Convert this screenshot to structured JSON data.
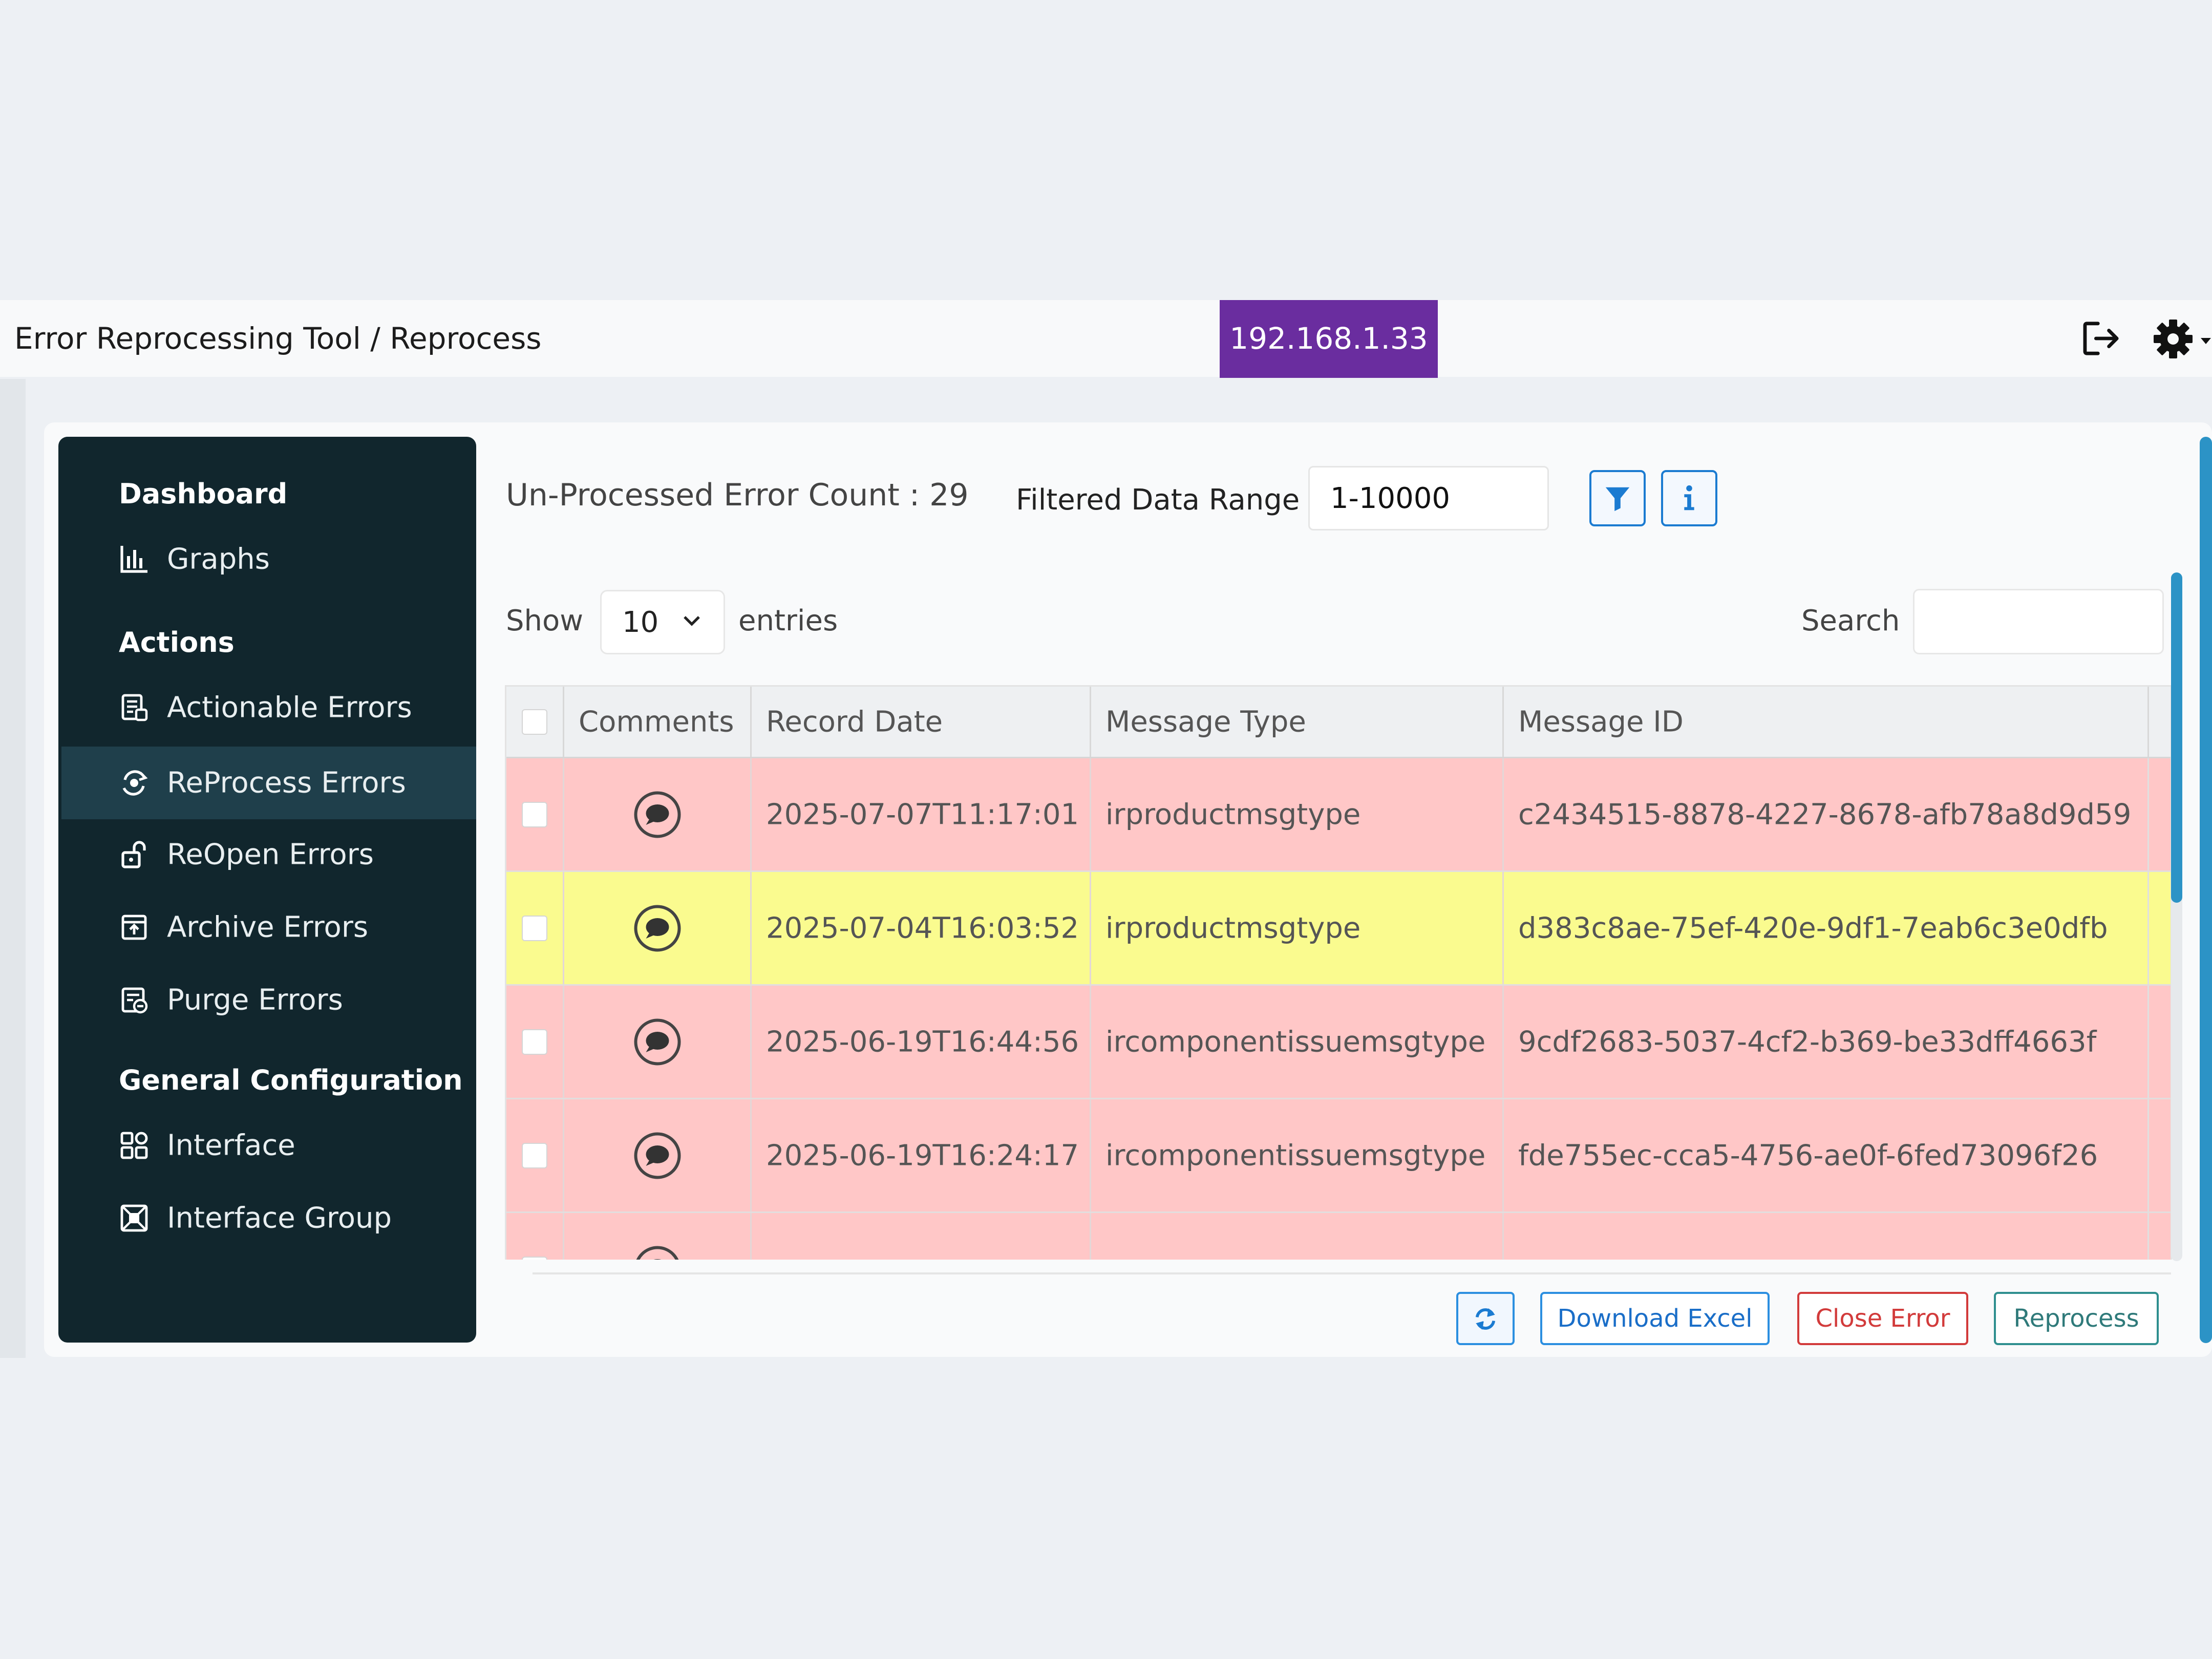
{
  "header": {
    "breadcrumb": "Error Reprocessing Tool / Reprocess",
    "ip_badge": "192.168.1.33",
    "logout_icon": "logout-icon",
    "settings_icon": "gear-icon",
    "accent_color": "#6a2d9f"
  },
  "sidebar": {
    "sections": [
      {
        "title": "Dashboard",
        "items": [
          {
            "label": "Graphs",
            "icon": "bar-chart-icon"
          }
        ]
      },
      {
        "title": "Actions",
        "items": [
          {
            "label": "Actionable Errors",
            "icon": "document-icon"
          },
          {
            "label": "ReProcess Errors",
            "icon": "reprocess-icon",
            "active": true
          },
          {
            "label": "ReOpen Errors",
            "icon": "unlock-icon"
          },
          {
            "label": "Archive Errors",
            "icon": "archive-icon"
          },
          {
            "label": "Purge Errors",
            "icon": "purge-icon"
          }
        ]
      },
      {
        "title": "General Configuration",
        "items": [
          {
            "label": "Interface",
            "icon": "interface-icon"
          },
          {
            "label": "Interface Group",
            "icon": "interface-group-icon"
          }
        ]
      }
    ],
    "background": "#11262d",
    "active_background": "#1f3f4b"
  },
  "main": {
    "count_label": "Un-Processed Error Count : 29",
    "filtered_label": "Filtered Data Range",
    "range_value": "1-10000",
    "show_label": "Show",
    "page_size": "10",
    "entries_label": "entries",
    "search_label": "Search",
    "search_value": ""
  },
  "table": {
    "columns": [
      "Comments",
      "Record Date",
      "Message Type",
      "Message ID"
    ],
    "rows": [
      {
        "record_date": "2025-07-07T11:17:01",
        "message_type": "irproductmsgtype",
        "message_id": "c2434515-8878-4227-8678-afb78a8d9d59",
        "color": "#ffc7c7"
      },
      {
        "record_date": "2025-07-04T16:03:52",
        "message_type": "irproductmsgtype",
        "message_id": "d383c8ae-75ef-420e-9df1-7eab6c3e0dfb",
        "color": "#fafb8f"
      },
      {
        "record_date": "2025-06-19T16:44:56",
        "message_type": "ircomponentissuemsgtype",
        "message_id": "9cdf2683-5037-4cf2-b369-be33dff4663f",
        "color": "#ffc7c7"
      },
      {
        "record_date": "2025-06-19T16:24:17",
        "message_type": "ircomponentissuemsgtype",
        "message_id": "fde755ec-cca5-4756-ae0f-6fed73096f26",
        "color": "#ffc7c7"
      }
    ]
  },
  "buttons": {
    "download": "Download Excel",
    "close": "Close Error",
    "reprocess": "Reprocess",
    "refresh_icon": "refresh-icon"
  }
}
